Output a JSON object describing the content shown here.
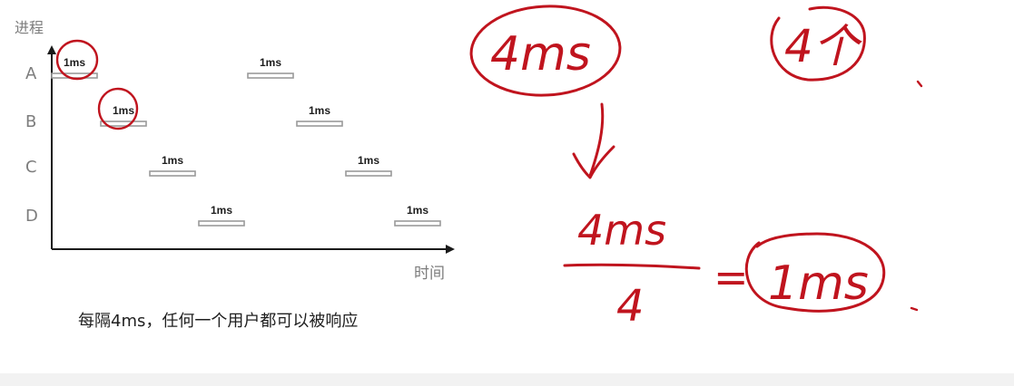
{
  "diagram": {
    "ylabel": "进程",
    "xlabel": "时间",
    "caption": "每隔4ms，任何一个用户都可以被响应",
    "processes": [
      "A",
      "B",
      "C",
      "D"
    ],
    "slice_label": "1ms"
  },
  "chart_data": {
    "type": "gantt",
    "ylabel": "进程",
    "xlabel": "时间",
    "rows": [
      "A",
      "B",
      "C",
      "D"
    ],
    "tasks": [
      {
        "process": "A",
        "start": 0,
        "end": 1,
        "label": "1ms"
      },
      {
        "process": "B",
        "start": 1,
        "end": 2,
        "label": "1ms"
      },
      {
        "process": "C",
        "start": 2,
        "end": 3,
        "label": "1ms"
      },
      {
        "process": "D",
        "start": 3,
        "end": 4,
        "label": "1ms"
      },
      {
        "process": "A",
        "start": 4,
        "end": 5,
        "label": "1ms"
      },
      {
        "process": "B",
        "start": 5,
        "end": 6,
        "label": "1ms"
      },
      {
        "process": "C",
        "start": 6,
        "end": 7,
        "label": "1ms"
      },
      {
        "process": "D",
        "start": 7,
        "end": 8,
        "label": "1ms"
      }
    ],
    "xlim": [
      0,
      8
    ],
    "grid": false
  },
  "annotations": {
    "top_left_note": "4ms",
    "top_right_note": "4个",
    "fraction_numerator": "4ms",
    "fraction_denominator": "4",
    "equals_sign": "=",
    "result": "1ms",
    "ink_color": "#c0141e"
  }
}
